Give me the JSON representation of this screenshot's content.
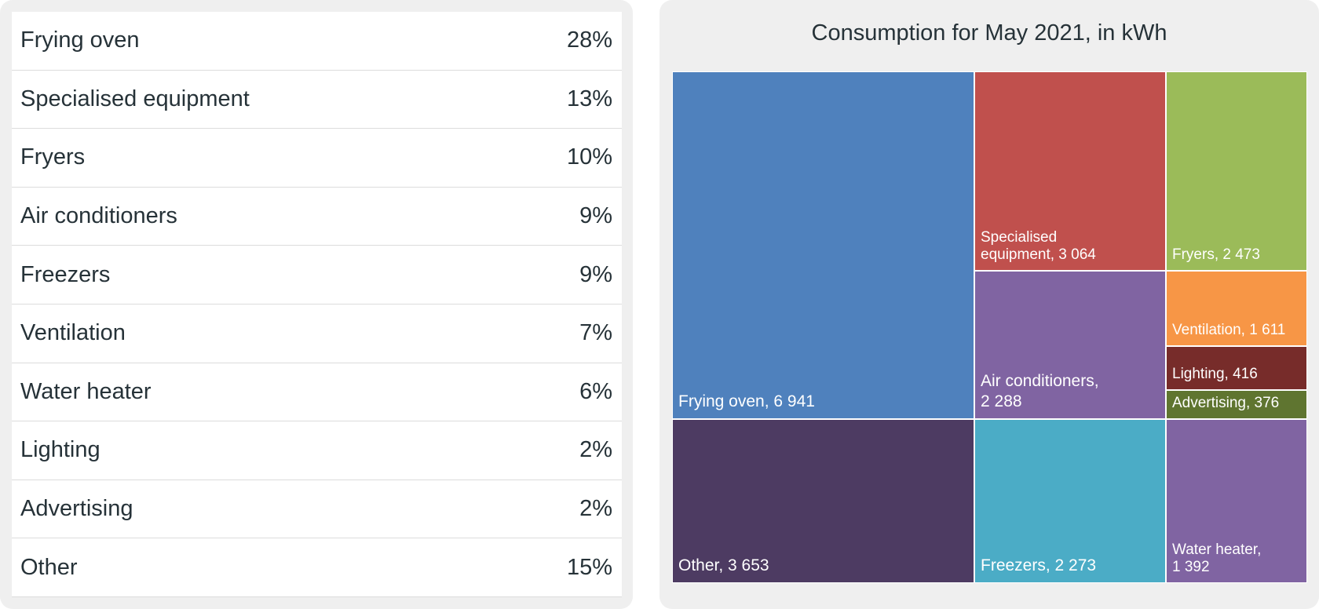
{
  "table": {
    "rows": [
      {
        "label": "Frying oven",
        "pct": "28%"
      },
      {
        "label": "Specialised equipment",
        "pct": "13%"
      },
      {
        "label": "Fryers",
        "pct": "10%"
      },
      {
        "label": "Air conditioners",
        "pct": "9%"
      },
      {
        "label": "Freezers",
        "pct": "9%"
      },
      {
        "label": "Ventilation",
        "pct": "7%"
      },
      {
        "label": "Water heater",
        "pct": "6%"
      },
      {
        "label": "Lighting",
        "pct": "2%"
      },
      {
        "label": "Advertising",
        "pct": "2%"
      },
      {
        "label": "Other",
        "pct": "15%"
      }
    ]
  },
  "chart_data": {
    "type": "treemap",
    "title": "Consumption for May 2021, in kWh",
    "items": [
      {
        "name": "Frying oven",
        "value": 6941,
        "display": "Frying oven, 6 941",
        "color": "#4f81bd"
      },
      {
        "name": "Specialised equipment",
        "value": 3064,
        "display": "Specialised\nequipment, 3 064",
        "color": "#c0504d"
      },
      {
        "name": "Fryers",
        "value": 2473,
        "display": "Fryers, 2 473",
        "color": "#9bbb59"
      },
      {
        "name": "Air conditioners",
        "value": 2288,
        "display": "Air conditioners,\n2 288",
        "color": "#8064a2"
      },
      {
        "name": "Ventilation",
        "value": 1611,
        "display": "Ventilation, 1 611",
        "color": "#f79646"
      },
      {
        "name": "Lighting",
        "value": 416,
        "display": "Lighting, 416",
        "color": "#772c2a"
      },
      {
        "name": "Advertising",
        "value": 376,
        "display": "Advertising, 376",
        "color": "#5f7530"
      },
      {
        "name": "Other",
        "value": 3653,
        "display": "Other, 3 653",
        "color": "#4d3b62"
      },
      {
        "name": "Freezers",
        "value": 2273,
        "display": "Freezers, 2 273",
        "color": "#4bacc6"
      },
      {
        "name": "Water heater",
        "value": 1392,
        "display": "Water heater,\n1 392",
        "color": "#8064a2"
      }
    ]
  }
}
